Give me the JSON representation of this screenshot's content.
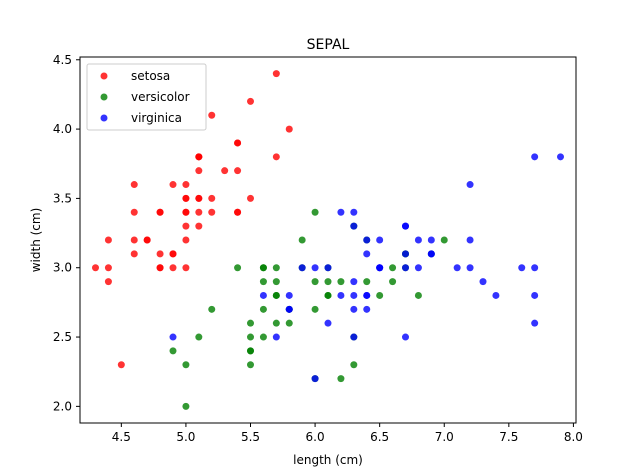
{
  "chart_data": {
    "type": "scatter",
    "title": "SEPAL",
    "xlabel": "length (cm)",
    "ylabel": "width (cm)",
    "xlim": [
      4.18,
      8.02
    ],
    "ylim": [
      1.88,
      4.52
    ],
    "xticks": [
      4.5,
      5.0,
      5.5,
      6.0,
      6.5,
      7.0,
      7.5,
      8.0
    ],
    "xtick_labels": [
      "4.5",
      "5.0",
      "5.5",
      "6.0",
      "6.5",
      "7.0",
      "7.5",
      "8.0"
    ],
    "yticks": [
      2.0,
      2.5,
      3.0,
      3.5,
      4.0,
      4.5
    ],
    "ytick_labels": [
      "2.0",
      "2.5",
      "3.0",
      "3.5",
      "4.0",
      "4.5"
    ],
    "grid": false,
    "legend": "top-left",
    "series": [
      {
        "name": "setosa",
        "color": "#ff0000",
        "points": [
          [
            5.1,
            3.5
          ],
          [
            4.9,
            3.0
          ],
          [
            4.7,
            3.2
          ],
          [
            4.6,
            3.1
          ],
          [
            5.0,
            3.6
          ],
          [
            5.4,
            3.9
          ],
          [
            4.6,
            3.4
          ],
          [
            5.0,
            3.4
          ],
          [
            4.4,
            2.9
          ],
          [
            4.9,
            3.1
          ],
          [
            5.4,
            3.7
          ],
          [
            4.8,
            3.4
          ],
          [
            4.8,
            3.0
          ],
          [
            4.3,
            3.0
          ],
          [
            5.8,
            4.0
          ],
          [
            5.7,
            4.4
          ],
          [
            5.4,
            3.9
          ],
          [
            5.1,
            3.5
          ],
          [
            5.7,
            3.8
          ],
          [
            5.1,
            3.8
          ],
          [
            5.4,
            3.4
          ],
          [
            5.1,
            3.7
          ],
          [
            4.6,
            3.6
          ],
          [
            5.1,
            3.3
          ],
          [
            4.8,
            3.4
          ],
          [
            5.0,
            3.0
          ],
          [
            5.0,
            3.4
          ],
          [
            5.2,
            3.5
          ],
          [
            5.2,
            3.4
          ],
          [
            4.7,
            3.2
          ],
          [
            4.8,
            3.1
          ],
          [
            5.4,
            3.4
          ],
          [
            5.2,
            4.1
          ],
          [
            5.5,
            4.2
          ],
          [
            4.9,
            3.1
          ],
          [
            5.0,
            3.2
          ],
          [
            5.5,
            3.5
          ],
          [
            4.9,
            3.6
          ],
          [
            4.4,
            3.0
          ],
          [
            5.1,
            3.4
          ],
          [
            5.0,
            3.5
          ],
          [
            4.5,
            2.3
          ],
          [
            4.4,
            3.2
          ],
          [
            5.0,
            3.5
          ],
          [
            5.1,
            3.8
          ],
          [
            4.8,
            3.0
          ],
          [
            5.1,
            3.8
          ],
          [
            4.6,
            3.2
          ],
          [
            5.3,
            3.7
          ],
          [
            5.0,
            3.3
          ]
        ]
      },
      {
        "name": "versicolor",
        "color": "#008000",
        "points": [
          [
            7.0,
            3.2
          ],
          [
            6.4,
            3.2
          ],
          [
            6.9,
            3.1
          ],
          [
            5.5,
            2.3
          ],
          [
            6.5,
            2.8
          ],
          [
            5.7,
            2.8
          ],
          [
            6.3,
            3.3
          ],
          [
            4.9,
            2.4
          ],
          [
            6.6,
            2.9
          ],
          [
            5.2,
            2.7
          ],
          [
            5.0,
            2.0
          ],
          [
            5.9,
            3.0
          ],
          [
            6.0,
            2.2
          ],
          [
            6.1,
            2.9
          ],
          [
            5.6,
            2.9
          ],
          [
            6.7,
            3.1
          ],
          [
            5.6,
            3.0
          ],
          [
            5.8,
            2.7
          ],
          [
            6.2,
            2.2
          ],
          [
            5.6,
            2.5
          ],
          [
            5.9,
            3.2
          ],
          [
            6.1,
            2.8
          ],
          [
            6.3,
            2.5
          ],
          [
            6.1,
            2.8
          ],
          [
            6.4,
            2.9
          ],
          [
            6.6,
            3.0
          ],
          [
            6.8,
            2.8
          ],
          [
            6.7,
            3.0
          ],
          [
            6.0,
            2.9
          ],
          [
            5.7,
            2.6
          ],
          [
            5.5,
            2.4
          ],
          [
            5.5,
            2.4
          ],
          [
            5.8,
            2.7
          ],
          [
            6.0,
            2.7
          ],
          [
            5.4,
            3.0
          ],
          [
            6.0,
            3.4
          ],
          [
            6.7,
            3.1
          ],
          [
            6.3,
            2.3
          ],
          [
            5.6,
            3.0
          ],
          [
            5.5,
            2.5
          ],
          [
            5.5,
            2.6
          ],
          [
            6.1,
            3.0
          ],
          [
            5.8,
            2.6
          ],
          [
            5.0,
            2.3
          ],
          [
            5.6,
            2.7
          ],
          [
            5.7,
            3.0
          ],
          [
            5.7,
            2.9
          ],
          [
            6.2,
            2.9
          ],
          [
            5.1,
            2.5
          ],
          [
            5.7,
            2.8
          ]
        ]
      },
      {
        "name": "virginica",
        "color": "#0000ff",
        "points": [
          [
            6.3,
            3.3
          ],
          [
            5.8,
            2.7
          ],
          [
            7.1,
            3.0
          ],
          [
            6.3,
            2.9
          ],
          [
            6.5,
            3.0
          ],
          [
            7.6,
            3.0
          ],
          [
            4.9,
            2.5
          ],
          [
            7.3,
            2.9
          ],
          [
            6.7,
            2.5
          ],
          [
            7.2,
            3.6
          ],
          [
            6.5,
            3.2
          ],
          [
            6.4,
            2.7
          ],
          [
            6.8,
            3.0
          ],
          [
            5.7,
            2.5
          ],
          [
            5.8,
            2.8
          ],
          [
            6.4,
            3.2
          ],
          [
            6.5,
            3.0
          ],
          [
            7.7,
            3.8
          ],
          [
            7.7,
            2.6
          ],
          [
            6.0,
            2.2
          ],
          [
            6.9,
            3.2
          ],
          [
            5.6,
            2.8
          ],
          [
            7.7,
            2.8
          ],
          [
            6.3,
            2.7
          ],
          [
            6.7,
            3.3
          ],
          [
            7.2,
            3.2
          ],
          [
            6.2,
            2.8
          ],
          [
            6.1,
            3.0
          ],
          [
            6.4,
            2.8
          ],
          [
            7.2,
            3.0
          ],
          [
            7.4,
            2.8
          ],
          [
            7.9,
            3.8
          ],
          [
            6.4,
            2.8
          ],
          [
            6.3,
            2.8
          ],
          [
            6.1,
            2.6
          ],
          [
            7.7,
            3.0
          ],
          [
            6.3,
            3.4
          ],
          [
            6.4,
            3.1
          ],
          [
            6.0,
            3.0
          ],
          [
            6.9,
            3.1
          ],
          [
            6.7,
            3.1
          ],
          [
            6.9,
            3.1
          ],
          [
            5.8,
            2.7
          ],
          [
            6.8,
            3.2
          ],
          [
            6.7,
            3.3
          ],
          [
            6.7,
            3.0
          ],
          [
            6.3,
            2.5
          ],
          [
            6.5,
            3.0
          ],
          [
            6.2,
            3.4
          ],
          [
            5.9,
            3.0
          ]
        ]
      }
    ]
  }
}
